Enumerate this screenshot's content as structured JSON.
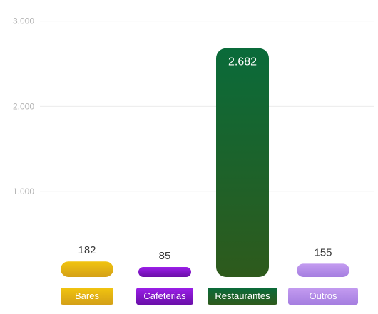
{
  "chart_data": {
    "type": "bar",
    "categories": [
      "Bares",
      "Cafeterias",
      "Restaurantes",
      "Outros"
    ],
    "values": [
      182,
      85,
      2682,
      155
    ],
    "value_labels": [
      "182",
      "85",
      "2.682",
      "155"
    ],
    "yticks": [
      1000,
      2000,
      3000
    ],
    "ytick_labels": [
      "1.000",
      "2.000",
      "3.000"
    ],
    "ylim": [
      0,
      3000
    ],
    "grid": true,
    "colors": {
      "Bares": [
        "#f1c40f",
        "#d4a017"
      ],
      "Cafeterias": [
        "#9b1fe8",
        "#6a0fa8"
      ],
      "Restaurantes": [
        "#0a6b3a",
        "#2e5a1c"
      ],
      "Outros": [
        "#c39bf0",
        "#a57ee0"
      ]
    }
  }
}
